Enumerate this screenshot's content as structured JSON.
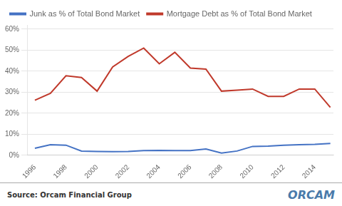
{
  "chart_data": {
    "type": "line",
    "x": [
      1996,
      1997,
      1998,
      1999,
      2000,
      2001,
      2002,
      2003,
      2004,
      2005,
      2006,
      2007,
      2008,
      2009,
      2010,
      2011,
      2012,
      2013,
      2014,
      2015
    ],
    "series": [
      {
        "name": "Junk as % of Total Bond Market",
        "color": "#4472C4",
        "values": [
          0.033,
          0.05,
          0.048,
          0.02,
          0.018,
          0.017,
          0.018,
          0.022,
          0.023,
          0.022,
          0.022,
          0.03,
          0.01,
          0.02,
          0.042,
          0.043,
          0.048,
          0.05,
          0.052,
          0.056
        ]
      },
      {
        "name": "Mortgage Debt as % of Total Bond Market",
        "color": "#C0392B",
        "values": [
          0.262,
          0.295,
          0.378,
          0.37,
          0.305,
          0.42,
          0.47,
          0.51,
          0.435,
          0.49,
          0.415,
          0.41,
          0.305,
          0.31,
          0.315,
          0.28,
          0.28,
          0.315,
          0.315,
          0.228
        ]
      }
    ],
    "xlim": [
      1995.5,
      2015.2
    ],
    "xticks": [
      1996,
      1998,
      2000,
      2002,
      2004,
      2006,
      2008,
      2010,
      2012,
      2014
    ],
    "ylim": [
      0.0,
      0.62
    ],
    "yticks": [
      {
        "value": 0.0,
        "label": "0%"
      },
      {
        "value": 0.1,
        "label": "10%"
      },
      {
        "value": 0.2,
        "label": "20%"
      },
      {
        "value": 0.3,
        "label": "30%"
      },
      {
        "value": 0.4,
        "label": "40%"
      },
      {
        "value": 0.5,
        "label": "50%"
      },
      {
        "value": 0.6,
        "label": "60%"
      }
    ],
    "grid": true,
    "legend": "upper left",
    "annotations": [
      "Source: Orcam Financial Group",
      "ORCAM"
    ]
  }
}
